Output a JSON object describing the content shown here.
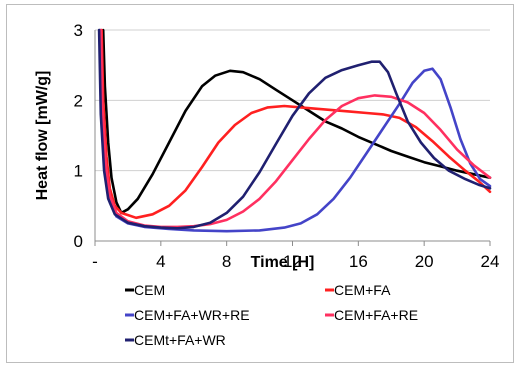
{
  "chart_data": {
    "type": "line",
    "xlabel": "Time [H]",
    "ylabel": "Heat flow [mW/g]",
    "xlim": [
      0,
      24
    ],
    "ylim": [
      0,
      3
    ],
    "x_ticks": [
      {
        "value": 0,
        "label": "-"
      },
      {
        "value": 4,
        "label": "4"
      },
      {
        "value": 8,
        "label": "8"
      },
      {
        "value": 12,
        "label": "12"
      },
      {
        "value": 16,
        "label": "16"
      },
      {
        "value": 20,
        "label": "20"
      },
      {
        "value": 24,
        "label": "24"
      }
    ],
    "y_ticks": [
      {
        "value": 0,
        "label": "0"
      },
      {
        "value": 1,
        "label": "1"
      },
      {
        "value": 2,
        "label": "2"
      },
      {
        "value": 3,
        "label": "3"
      }
    ],
    "grid": "horizontal",
    "legend_position": "bottom",
    "series": [
      {
        "name": "CEM",
        "color": "#000000",
        "points": [
          [
            0.5,
            3.0
          ],
          [
            0.6,
            2.2
          ],
          [
            0.8,
            1.4
          ],
          [
            1.0,
            0.9
          ],
          [
            1.3,
            0.55
          ],
          [
            1.6,
            0.4
          ],
          [
            2.0,
            0.45
          ],
          [
            2.6,
            0.6
          ],
          [
            3.5,
            0.95
          ],
          [
            4.5,
            1.4
          ],
          [
            5.5,
            1.85
          ],
          [
            6.5,
            2.2
          ],
          [
            7.3,
            2.35
          ],
          [
            8.2,
            2.42
          ],
          [
            9.0,
            2.4
          ],
          [
            10.0,
            2.3
          ],
          [
            11.0,
            2.15
          ],
          [
            12.0,
            2.0
          ],
          [
            13.0,
            1.85
          ],
          [
            14.0,
            1.7
          ],
          [
            15.0,
            1.6
          ],
          [
            16.0,
            1.48
          ],
          [
            17.0,
            1.38
          ],
          [
            18.0,
            1.28
          ],
          [
            19.0,
            1.2
          ],
          [
            20.0,
            1.12
          ],
          [
            21.0,
            1.06
          ],
          [
            22.0,
            1.0
          ],
          [
            23.0,
            0.95
          ],
          [
            24.0,
            0.9
          ]
        ]
      },
      {
        "name": "CEM+FA",
        "color": "#ff2020",
        "points": [
          [
            0.4,
            3.0
          ],
          [
            0.5,
            2.0
          ],
          [
            0.7,
            1.2
          ],
          [
            0.9,
            0.75
          ],
          [
            1.2,
            0.5
          ],
          [
            1.6,
            0.4
          ],
          [
            2.5,
            0.33
          ],
          [
            3.5,
            0.38
          ],
          [
            4.5,
            0.5
          ],
          [
            5.5,
            0.72
          ],
          [
            6.5,
            1.05
          ],
          [
            7.5,
            1.4
          ],
          [
            8.5,
            1.65
          ],
          [
            9.5,
            1.82
          ],
          [
            10.5,
            1.9
          ],
          [
            11.5,
            1.92
          ],
          [
            12.5,
            1.9
          ],
          [
            13.5,
            1.88
          ],
          [
            14.5,
            1.86
          ],
          [
            15.5,
            1.84
          ],
          [
            16.5,
            1.82
          ],
          [
            17.5,
            1.8
          ],
          [
            18.5,
            1.75
          ],
          [
            19.5,
            1.62
          ],
          [
            20.5,
            1.42
          ],
          [
            21.5,
            1.2
          ],
          [
            22.5,
            1.0
          ],
          [
            23.3,
            0.85
          ],
          [
            24.0,
            0.7
          ]
        ]
      },
      {
        "name": "CEM+FA+WR+RE",
        "color": "#4444c8",
        "points": [
          [
            0.3,
            3.0
          ],
          [
            0.4,
            1.8
          ],
          [
            0.6,
            1.0
          ],
          [
            0.9,
            0.55
          ],
          [
            1.3,
            0.35
          ],
          [
            2.0,
            0.25
          ],
          [
            3.0,
            0.2
          ],
          [
            4.5,
            0.17
          ],
          [
            6.0,
            0.15
          ],
          [
            8.0,
            0.14
          ],
          [
            10.0,
            0.15
          ],
          [
            11.5,
            0.19
          ],
          [
            12.5,
            0.25
          ],
          [
            13.5,
            0.38
          ],
          [
            14.5,
            0.6
          ],
          [
            15.5,
            0.9
          ],
          [
            16.5,
            1.25
          ],
          [
            17.5,
            1.6
          ],
          [
            18.5,
            1.95
          ],
          [
            19.3,
            2.25
          ],
          [
            20.0,
            2.42
          ],
          [
            20.5,
            2.45
          ],
          [
            21.0,
            2.3
          ],
          [
            21.6,
            1.9
          ],
          [
            22.2,
            1.45
          ],
          [
            22.8,
            1.1
          ],
          [
            23.4,
            0.88
          ],
          [
            24.0,
            0.78
          ]
        ]
      },
      {
        "name": "CEM+FA+RE",
        "color": "#ff3060",
        "points": [
          [
            0.35,
            3.0
          ],
          [
            0.45,
            1.9
          ],
          [
            0.65,
            1.1
          ],
          [
            0.9,
            0.65
          ],
          [
            1.3,
            0.4
          ],
          [
            2.0,
            0.28
          ],
          [
            3.0,
            0.22
          ],
          [
            4.0,
            0.2
          ],
          [
            5.0,
            0.2
          ],
          [
            6.0,
            0.21
          ],
          [
            7.0,
            0.24
          ],
          [
            8.0,
            0.3
          ],
          [
            9.0,
            0.42
          ],
          [
            10.0,
            0.6
          ],
          [
            11.0,
            0.85
          ],
          [
            12.0,
            1.15
          ],
          [
            13.0,
            1.45
          ],
          [
            14.0,
            1.72
          ],
          [
            15.0,
            1.92
          ],
          [
            16.0,
            2.03
          ],
          [
            17.0,
            2.07
          ],
          [
            18.0,
            2.05
          ],
          [
            19.0,
            1.97
          ],
          [
            20.0,
            1.82
          ],
          [
            21.0,
            1.58
          ],
          [
            22.0,
            1.3
          ],
          [
            23.0,
            1.08
          ],
          [
            24.0,
            0.9
          ]
        ]
      },
      {
        "name": "CEMt+FA+WR",
        "color": "#202070",
        "points": [
          [
            0.25,
            3.0
          ],
          [
            0.35,
            1.8
          ],
          [
            0.55,
            1.0
          ],
          [
            0.8,
            0.6
          ],
          [
            1.2,
            0.38
          ],
          [
            2.0,
            0.26
          ],
          [
            3.0,
            0.21
          ],
          [
            4.0,
            0.19
          ],
          [
            5.0,
            0.18
          ],
          [
            6.0,
            0.2
          ],
          [
            7.0,
            0.26
          ],
          [
            8.0,
            0.4
          ],
          [
            9.0,
            0.63
          ],
          [
            10.0,
            0.98
          ],
          [
            11.0,
            1.38
          ],
          [
            12.0,
            1.78
          ],
          [
            13.0,
            2.1
          ],
          [
            14.0,
            2.32
          ],
          [
            15.0,
            2.43
          ],
          [
            16.0,
            2.5
          ],
          [
            16.8,
            2.55
          ],
          [
            17.3,
            2.55
          ],
          [
            17.8,
            2.4
          ],
          [
            18.3,
            2.1
          ],
          [
            19.0,
            1.7
          ],
          [
            19.8,
            1.4
          ],
          [
            20.6,
            1.18
          ],
          [
            21.5,
            1.0
          ],
          [
            22.5,
            0.88
          ],
          [
            23.3,
            0.8
          ],
          [
            24.0,
            0.75
          ]
        ]
      }
    ]
  }
}
